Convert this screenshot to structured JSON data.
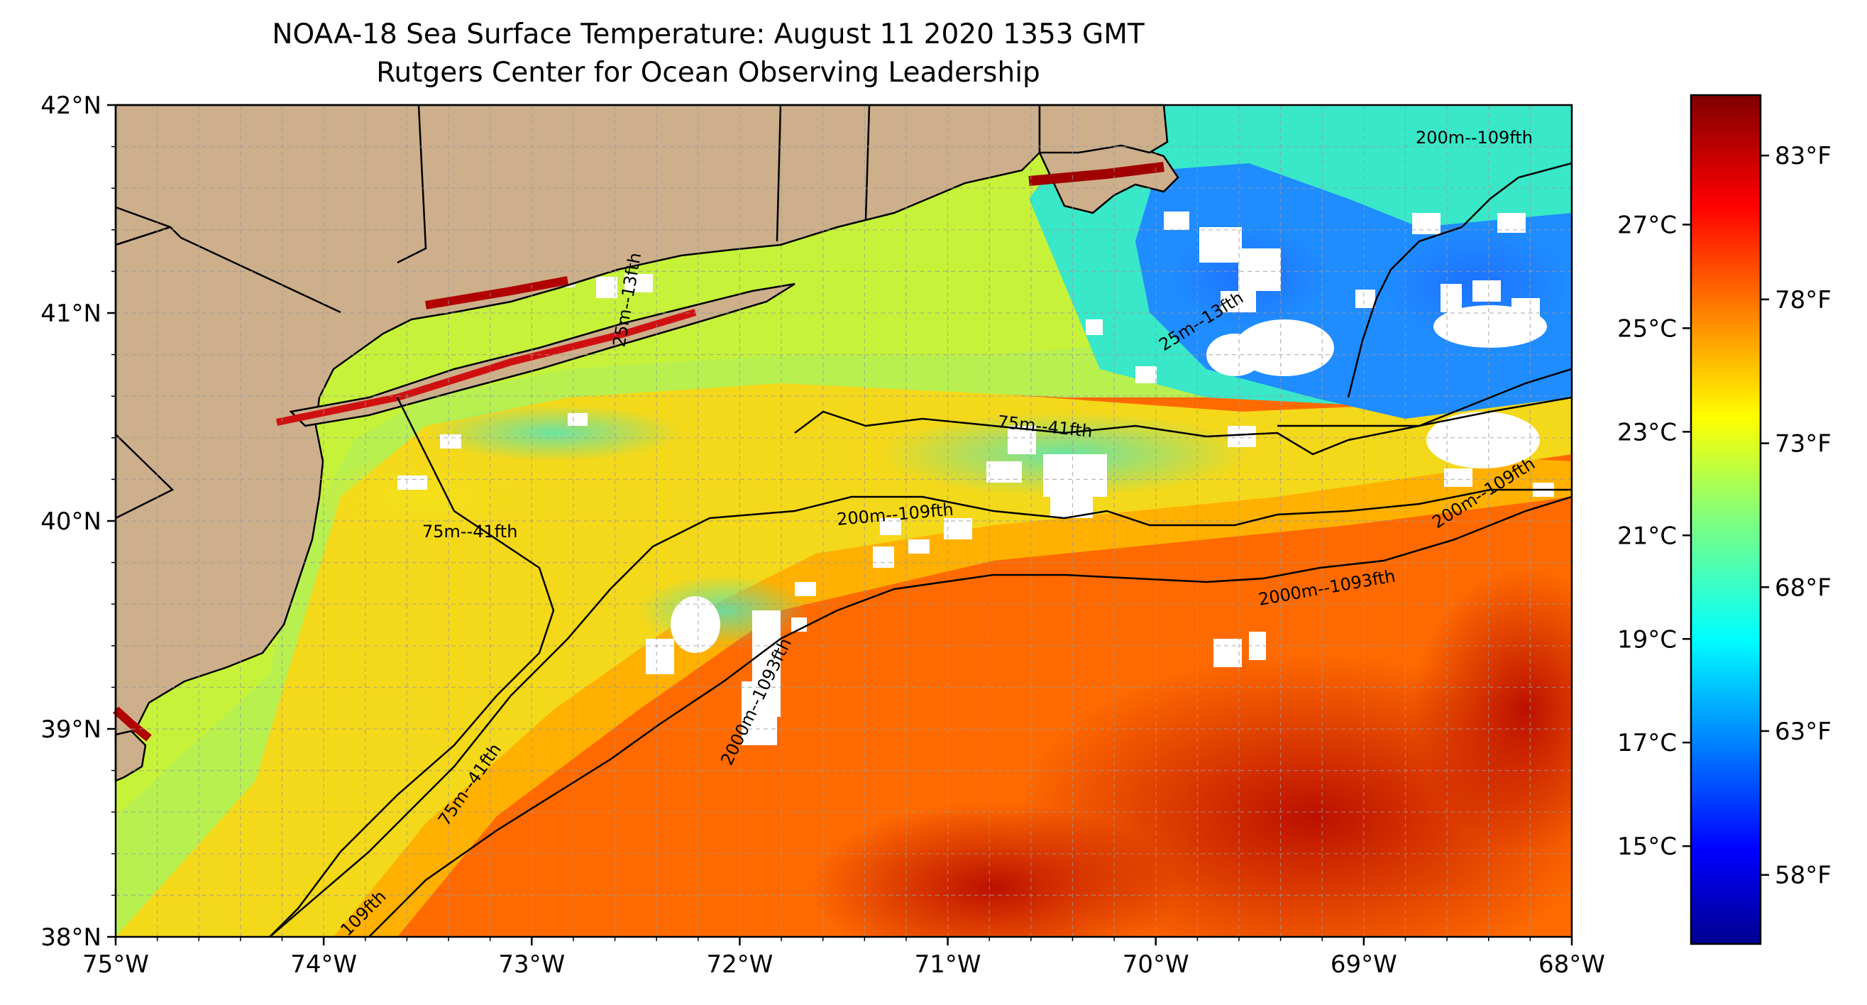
{
  "title": {
    "line1": "NOAA-18 Sea Surface Temperature: August 11 2020 1353 GMT",
    "line2": "Rutgers Center for Ocean Observing Leadership"
  },
  "map": {
    "lon_ticks": [
      "75°W",
      "74°W",
      "73°W",
      "72°W",
      "71°W",
      "70°W",
      "69°W",
      "68°W"
    ],
    "lat_ticks": [
      "42°N",
      "41°N",
      "40°N",
      "39°N",
      "38°N"
    ],
    "colors": {
      "land": "#CDAF8B",
      "cloud": "#FFFFFF",
      "grid": "#9A9A9A"
    },
    "contour_labels": [
      "200m--109fth",
      "75m--41fth",
      "200m--109fth",
      "200m--109fth",
      "2000m--1093fth",
      "2000m--1093fth",
      "75m--41fth",
      "75m--41fth",
      "109fth",
      "25m--13fth",
      "25m--13fth"
    ]
  },
  "colorbar": {
    "celsius_ticks": [
      "27°C",
      "25°C",
      "23°C",
      "21°C",
      "19°C",
      "17°C",
      "15°C"
    ],
    "fahrenheit_ticks": [
      "83°F",
      "78°F",
      "73°F",
      "68°F",
      "63°F",
      "58°F"
    ],
    "colormap": "jet"
  }
}
